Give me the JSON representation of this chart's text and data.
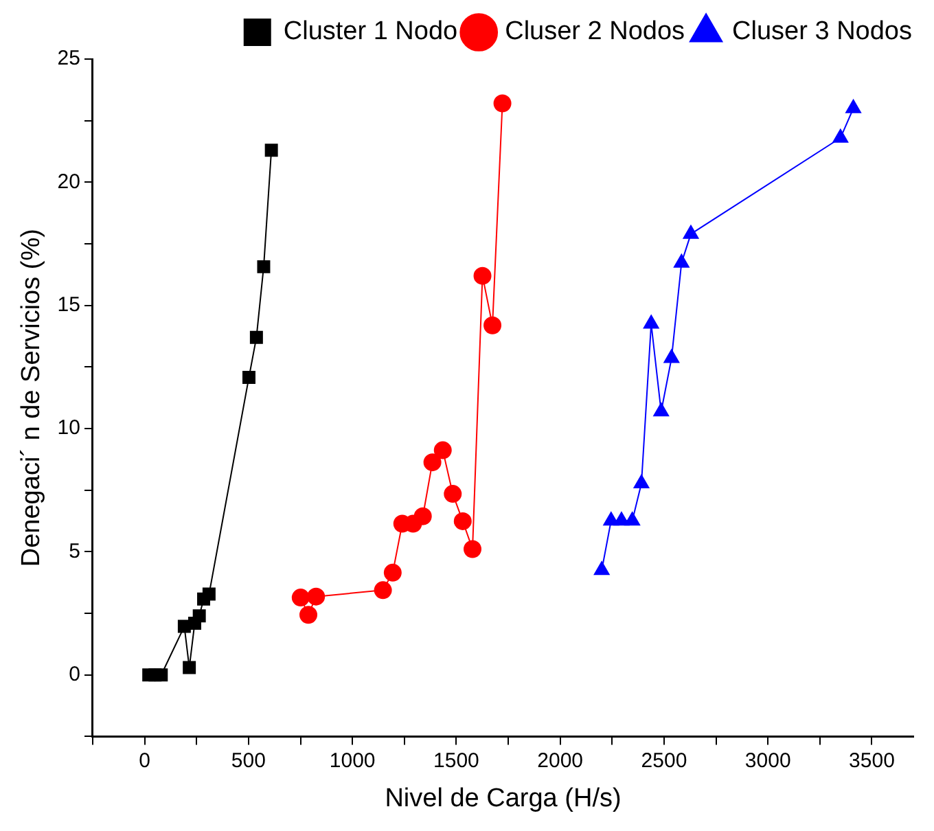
{
  "chart_data": {
    "type": "line",
    "xlabel": "Nivel de Carga (H/s)",
    "ylabel": "Denegaci´ n de Servicios (%)",
    "xlim": [
      -250,
      3700
    ],
    "ylim": [
      -2.5,
      25
    ],
    "xticks": [
      {
        "value": -250,
        "label": null
      },
      0,
      {
        "value": 250,
        "label": null
      },
      500,
      {
        "value": 750,
        "label": null
      },
      1000,
      {
        "value": 1250,
        "label": null
      },
      1500,
      {
        "value": 1750,
        "label": null
      },
      2000,
      {
        "value": 2250,
        "label": null
      },
      2500,
      {
        "value": 2750,
        "label": null
      },
      3000,
      {
        "value": 3250,
        "label": null
      },
      3500
    ],
    "yticks": [
      {
        "value": -2.5,
        "label": null
      },
      0,
      {
        "value": 2.5,
        "label": null
      },
      5,
      {
        "value": 7.5,
        "label": null
      },
      10,
      {
        "value": 12.5,
        "label": null
      },
      15,
      {
        "value": 17.5,
        "label": null
      },
      20,
      {
        "value": 22.5,
        "label": null
      },
      25
    ],
    "grid": false,
    "legend": "top right",
    "series": [
      {
        "name": "Cluster 1 Nodo",
        "color": "#000000",
        "marker": "square",
        "x": [
          20,
          50,
          80,
          191,
          215,
          241,
          263,
          284,
          310,
          502,
          538,
          573,
          610
        ],
        "values": [
          0,
          0,
          0,
          1.97,
          0.3,
          2.1,
          2.4,
          3.08,
          3.28,
          12.08,
          13.7,
          16.57,
          21.3
        ]
      },
      {
        "name": "Cluser 2 Nodos",
        "color": "#ff0000",
        "marker": "circle",
        "x": [
          751,
          788,
          825,
          1147,
          1194,
          1240,
          1292,
          1339,
          1385,
          1435,
          1483,
          1531,
          1578,
          1626,
          1674,
          1722
        ],
        "values": [
          3.14,
          2.44,
          3.18,
          3.44,
          4.15,
          6.14,
          6.14,
          6.44,
          8.63,
          9.12,
          7.35,
          6.24,
          5.11,
          16.2,
          14.19,
          23.2
        ]
      },
      {
        "name": "Cluser 3 Nodos",
        "color": "#0000ff",
        "marker": "triangle",
        "x": [
          2200,
          2245,
          2295,
          2347,
          2391,
          2438,
          2486,
          2536,
          2584,
          2629,
          3349,
          3411
        ],
        "values": [
          4.25,
          6.26,
          6.26,
          6.26,
          7.77,
          14.25,
          10.69,
          12.86,
          16.73,
          17.9,
          21.8,
          23.0
        ]
      }
    ]
  }
}
